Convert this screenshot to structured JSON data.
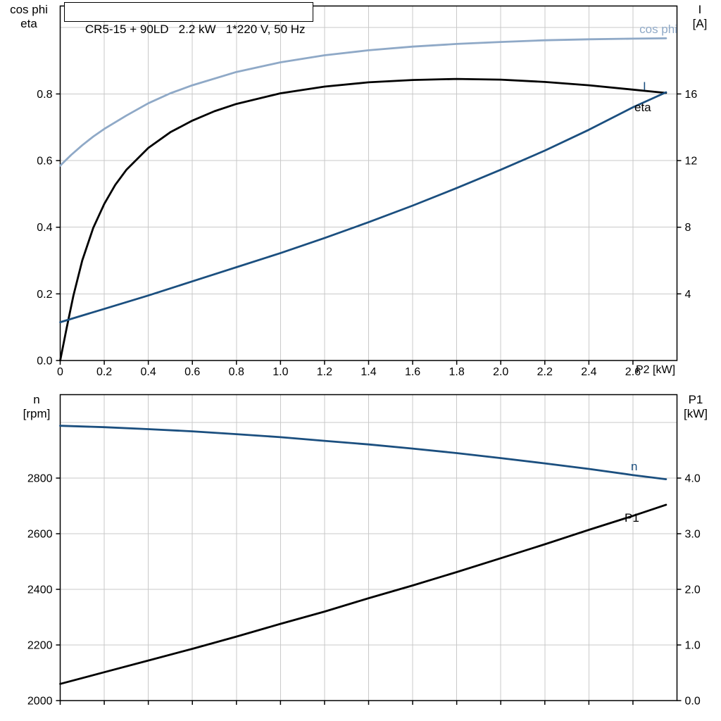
{
  "colors": {
    "light_blue": "#8fa9c7",
    "dark_blue": "#1b4f7f",
    "black": "#000000",
    "grid": "#c9c9c9",
    "axis": "#000000"
  },
  "chart_data": [
    {
      "type": "line",
      "title": "CR5-15 + 90LD   2.2 kW   1*220 V, 50 Hz",
      "xlabel": "P2 [kW]",
      "grid": true,
      "x_axis": {
        "range": [
          0,
          2.8
        ],
        "ticks": [
          0,
          0.2,
          0.4,
          0.6,
          0.8,
          1.0,
          1.2,
          1.4,
          1.6,
          1.8,
          2.0,
          2.2,
          2.4,
          2.6
        ],
        "tick_labels": [
          "0",
          "0.2",
          "0.4",
          "0.6",
          "0.8",
          "1.0",
          "1.2",
          "1.4",
          "1.6",
          "1.8",
          "2.0",
          "2.2",
          "2.4",
          "2.6"
        ]
      },
      "left_axis": {
        "title_lines": [
          "cos phi",
          "eta"
        ],
        "range": [
          0,
          1.064
        ],
        "ticks": [
          0,
          0.2,
          0.4,
          0.6,
          0.8
        ],
        "tick_labels": [
          "0.0",
          "0.2",
          "0.4",
          "0.6",
          "0.8"
        ],
        "grid_step": 0.2
      },
      "right_axis": {
        "title_lines": [
          "I",
          "[A]"
        ],
        "range": [
          0,
          21.28
        ],
        "ticks": [
          4,
          8,
          12,
          16
        ],
        "tick_labels": [
          "4",
          "8",
          "12",
          "16"
        ]
      },
      "series": [
        {
          "name": "cos phi",
          "axis": "left",
          "color": "light_blue",
          "x": [
            0,
            0.05,
            0.1,
            0.15,
            0.2,
            0.3,
            0.4,
            0.5,
            0.6,
            0.8,
            1.0,
            1.2,
            1.4,
            1.6,
            1.8,
            2.0,
            2.2,
            2.4,
            2.6,
            2.75
          ],
          "y": [
            0.585,
            0.617,
            0.646,
            0.672,
            0.695,
            0.735,
            0.772,
            0.802,
            0.826,
            0.866,
            0.895,
            0.916,
            0.931,
            0.942,
            0.95,
            0.956,
            0.961,
            0.964,
            0.966,
            0.967
          ]
        },
        {
          "name": "eta",
          "axis": "left",
          "color": "black",
          "x": [
            0,
            0.03,
            0.06,
            0.1,
            0.15,
            0.2,
            0.25,
            0.3,
            0.4,
            0.5,
            0.6,
            0.7,
            0.8,
            1.0,
            1.2,
            1.4,
            1.6,
            1.8,
            2.0,
            2.2,
            2.4,
            2.6,
            2.75
          ],
          "y": [
            0,
            0.1,
            0.195,
            0.3,
            0.398,
            0.47,
            0.527,
            0.572,
            0.638,
            0.685,
            0.72,
            0.748,
            0.77,
            0.802,
            0.822,
            0.835,
            0.842,
            0.845,
            0.843,
            0.836,
            0.826,
            0.813,
            0.803
          ]
        },
        {
          "name": "I",
          "axis": "right",
          "color": "dark_blue",
          "x": [
            0,
            0.2,
            0.4,
            0.6,
            0.8,
            1.0,
            1.2,
            1.4,
            1.6,
            1.8,
            2.0,
            2.2,
            2.4,
            2.6,
            2.75
          ],
          "y": [
            2.3,
            3.1,
            3.9,
            4.75,
            5.6,
            6.45,
            7.35,
            8.3,
            9.3,
            10.35,
            11.45,
            12.6,
            13.85,
            15.2,
            16.1
          ]
        }
      ]
    },
    {
      "type": "line",
      "title": "",
      "xlabel": "",
      "grid": true,
      "x_axis": {
        "range": [
          0,
          2.8
        ],
        "ticks": [
          0,
          0.2,
          0.4,
          0.6,
          0.8,
          1.0,
          1.2,
          1.4,
          1.6,
          1.8,
          2.0,
          2.2,
          2.4,
          2.6
        ],
        "tick_labels": []
      },
      "left_axis": {
        "title_lines": [
          "n",
          "[rpm]"
        ],
        "range": [
          2000,
          3100
        ],
        "ticks": [
          2000,
          2200,
          2400,
          2600,
          2800
        ],
        "tick_labels": [
          "2000",
          "2200",
          "2400",
          "2600",
          "2800"
        ],
        "grid_step": 200
      },
      "right_axis": {
        "title_lines": [
          "P1",
          "[kW]"
        ],
        "range": [
          0,
          5.5
        ],
        "ticks": [
          0,
          1,
          2,
          3,
          4
        ],
        "tick_labels": [
          "0.0",
          "1.0",
          "2.0",
          "3.0",
          "4.0"
        ]
      },
      "series": [
        {
          "name": "n",
          "axis": "left",
          "color": "dark_blue",
          "x": [
            0,
            0.2,
            0.4,
            0.6,
            0.8,
            1.0,
            1.2,
            1.4,
            1.6,
            1.8,
            2.0,
            2.2,
            2.4,
            2.6,
            2.75
          ],
          "y": [
            2988,
            2983,
            2976,
            2968,
            2958,
            2947,
            2934,
            2921,
            2906,
            2890,
            2872,
            2853,
            2833,
            2811,
            2796
          ]
        },
        {
          "name": "P1",
          "axis": "right",
          "color": "black",
          "x": [
            0,
            0.2,
            0.4,
            0.6,
            0.8,
            1.0,
            1.2,
            1.4,
            1.6,
            1.8,
            2.0,
            2.2,
            2.4,
            2.6,
            2.75
          ],
          "y": [
            0.3,
            0.51,
            0.72,
            0.93,
            1.15,
            1.38,
            1.6,
            1.84,
            2.07,
            2.31,
            2.56,
            2.81,
            3.07,
            3.32,
            3.52
          ]
        }
      ]
    }
  ]
}
